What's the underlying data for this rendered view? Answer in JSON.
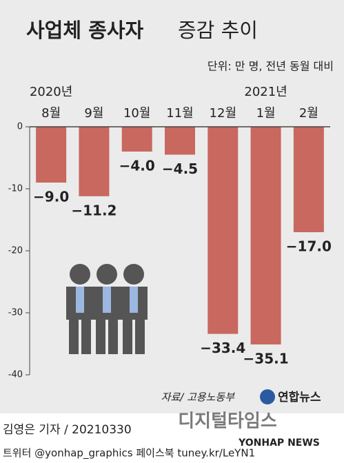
{
  "chart_data": {
    "type": "bar",
    "title": "사업체 종사자",
    "title_light": "증감 추이",
    "subtitle": "단위: 만 명, 전년 동월 대비",
    "categories": [
      "8월",
      "9월",
      "10월",
      "11월",
      "12월",
      "1월",
      "2월"
    ],
    "year_labels": [
      "2020년",
      null,
      null,
      null,
      null,
      "2021년",
      null
    ],
    "values": [
      -9.0,
      -11.2,
      -4.0,
      -4.5,
      -33.4,
      -35.1,
      -17.0
    ],
    "value_labels": [
      "−9.0",
      "−11.2",
      "−4.0",
      "−4.5",
      "−33.4",
      "−35.1",
      "−17.0"
    ],
    "color": "#c8685e",
    "ylim": [
      -40,
      0
    ],
    "yticks": [
      0,
      -10,
      -20,
      -30,
      -40
    ],
    "source": "자료/ 고용노동부",
    "logo": "연합뉴스",
    "byline": "김영은 기자 / 20210330",
    "social": "트위터 @yonhap_graphics  페이스북 tuney.kr/LeYN1",
    "watermark": "디지털타임스",
    "watermark2": "YONHAP NEWS"
  }
}
